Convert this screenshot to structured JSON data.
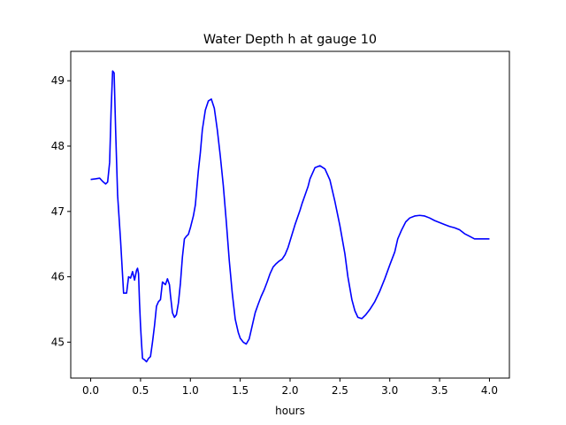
{
  "chart_data": {
    "type": "line",
    "title": "Water Depth h at gauge 10",
    "xlabel": "hours",
    "ylabel": "",
    "xlim": [
      -0.2,
      4.2
    ],
    "ylim": [
      44.45,
      49.45
    ],
    "xticks": [
      0.0,
      0.5,
      1.0,
      1.5,
      2.0,
      2.5,
      3.0,
      3.5,
      4.0
    ],
    "xtick_labels": [
      "0.0",
      "0.5",
      "1.0",
      "1.5",
      "2.0",
      "2.5",
      "3.0",
      "3.5",
      "4.0"
    ],
    "yticks": [
      45,
      46,
      47,
      48,
      49
    ],
    "ytick_labels": [
      "45",
      "46",
      "47",
      "48",
      "49"
    ],
    "grid": false,
    "series": [
      {
        "color": "#0000ff",
        "x": [
          0.0,
          0.05,
          0.09,
          0.12,
          0.15,
          0.17,
          0.19,
          0.205,
          0.22,
          0.235,
          0.25,
          0.27,
          0.3,
          0.33,
          0.36,
          0.38,
          0.4,
          0.42,
          0.44,
          0.46,
          0.47,
          0.48,
          0.49,
          0.5,
          0.51,
          0.52,
          0.54,
          0.56,
          0.58,
          0.6,
          0.62,
          0.64,
          0.66,
          0.68,
          0.7,
          0.72,
          0.75,
          0.77,
          0.79,
          0.8,
          0.82,
          0.84,
          0.86,
          0.88,
          0.9,
          0.92,
          0.94,
          0.96,
          0.98,
          1.0,
          1.03,
          1.05,
          1.07,
          1.08,
          1.1,
          1.12,
          1.15,
          1.18,
          1.21,
          1.24,
          1.27,
          1.3,
          1.33,
          1.36,
          1.39,
          1.42,
          1.45,
          1.48,
          1.5,
          1.53,
          1.56,
          1.59,
          1.62,
          1.65,
          1.68,
          1.71,
          1.74,
          1.77,
          1.8,
          1.83,
          1.86,
          1.89,
          1.92,
          1.95,
          1.98,
          2.0,
          2.05,
          2.1,
          2.12,
          2.15,
          2.18,
          2.2,
          2.25,
          2.3,
          2.35,
          2.4,
          2.45,
          2.5,
          2.55,
          2.58,
          2.62,
          2.65,
          2.68,
          2.72,
          2.76,
          2.8,
          2.85,
          2.9,
          2.95,
          3.0,
          3.05,
          3.08,
          3.12,
          3.16,
          3.2,
          3.25,
          3.3,
          3.35,
          3.4,
          3.45,
          3.5,
          3.55,
          3.6,
          3.65,
          3.7,
          3.75,
          3.8,
          3.85,
          3.9,
          3.95,
          4.0
        ],
        "values": [
          47.49,
          47.5,
          47.51,
          47.46,
          47.42,
          47.45,
          47.75,
          48.55,
          49.15,
          49.12,
          48.25,
          47.25,
          46.55,
          45.75,
          45.75,
          46.0,
          45.98,
          46.08,
          45.95,
          46.1,
          46.13,
          46.05,
          45.6,
          45.25,
          44.98,
          44.75,
          44.73,
          44.7,
          44.75,
          44.78,
          45.0,
          45.25,
          45.55,
          45.62,
          45.65,
          45.92,
          45.88,
          45.97,
          45.88,
          45.72,
          45.45,
          45.38,
          45.42,
          45.6,
          45.9,
          46.3,
          46.58,
          46.62,
          46.65,
          46.75,
          46.93,
          47.1,
          47.45,
          47.62,
          47.9,
          48.25,
          48.55,
          48.69,
          48.72,
          48.58,
          48.25,
          47.85,
          47.4,
          46.85,
          46.25,
          45.75,
          45.35,
          45.15,
          45.06,
          45.0,
          44.97,
          45.05,
          45.25,
          45.45,
          45.58,
          45.7,
          45.8,
          45.92,
          46.05,
          46.15,
          46.2,
          46.24,
          46.27,
          46.34,
          46.45,
          46.55,
          46.8,
          47.02,
          47.12,
          47.25,
          47.38,
          47.5,
          47.67,
          47.7,
          47.65,
          47.48,
          47.15,
          46.78,
          46.35,
          46.0,
          45.65,
          45.48,
          45.38,
          45.36,
          45.42,
          45.5,
          45.62,
          45.78,
          45.97,
          46.18,
          46.38,
          46.58,
          46.72,
          46.84,
          46.9,
          46.93,
          46.94,
          46.93,
          46.9,
          46.86,
          46.83,
          46.8,
          46.77,
          46.75,
          46.72,
          46.66,
          46.62,
          46.58,
          46.58,
          46.58,
          46.58
        ]
      }
    ]
  }
}
